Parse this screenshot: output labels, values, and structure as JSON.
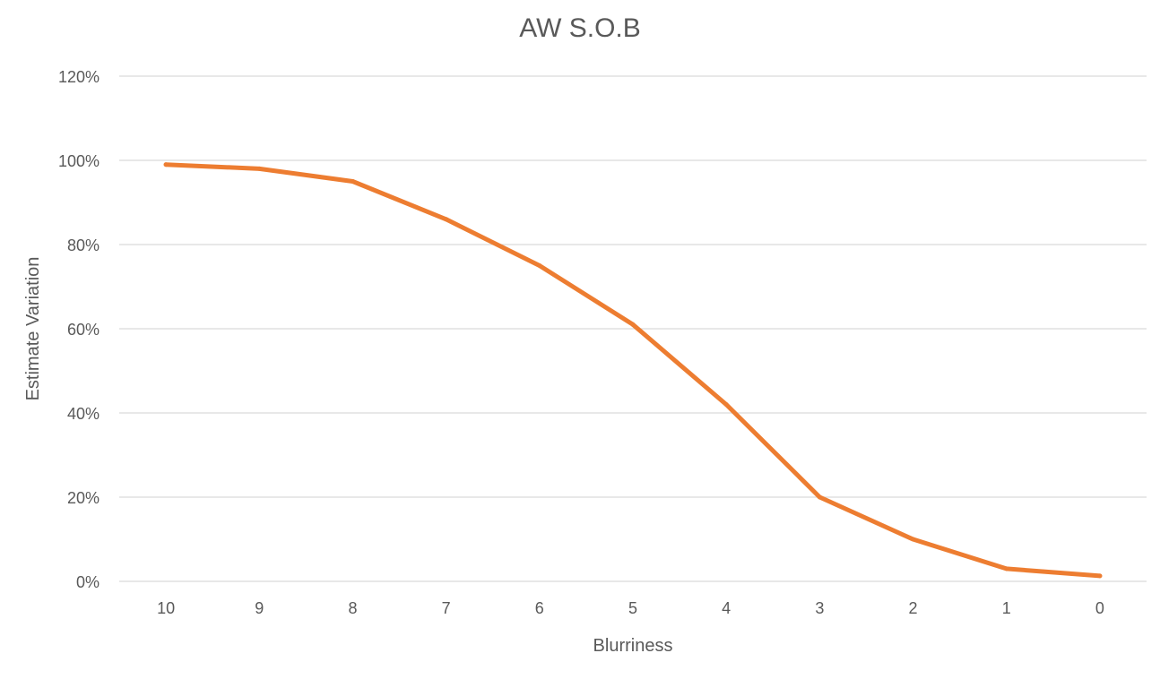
{
  "chart_data": {
    "type": "line",
    "title": "AW S.O.B",
    "xlabel": "Blurriness",
    "ylabel": "Estimate Variation",
    "categories": [
      "10",
      "9",
      "8",
      "7",
      "6",
      "5",
      "4",
      "3",
      "2",
      "1",
      "0"
    ],
    "series": [
      {
        "values": [
          99,
          98,
          95,
          86,
          75,
          61,
          42,
          20,
          10,
          3,
          1.3
        ],
        "color": "#ed7d31"
      }
    ],
    "ylim": [
      0,
      120
    ],
    "yticks": [
      0,
      20,
      40,
      60,
      80,
      100,
      120
    ],
    "ytick_labels": [
      "0%",
      "20%",
      "40%",
      "60%",
      "80%",
      "100%",
      "120%"
    ],
    "grid": true,
    "legend": "none"
  }
}
